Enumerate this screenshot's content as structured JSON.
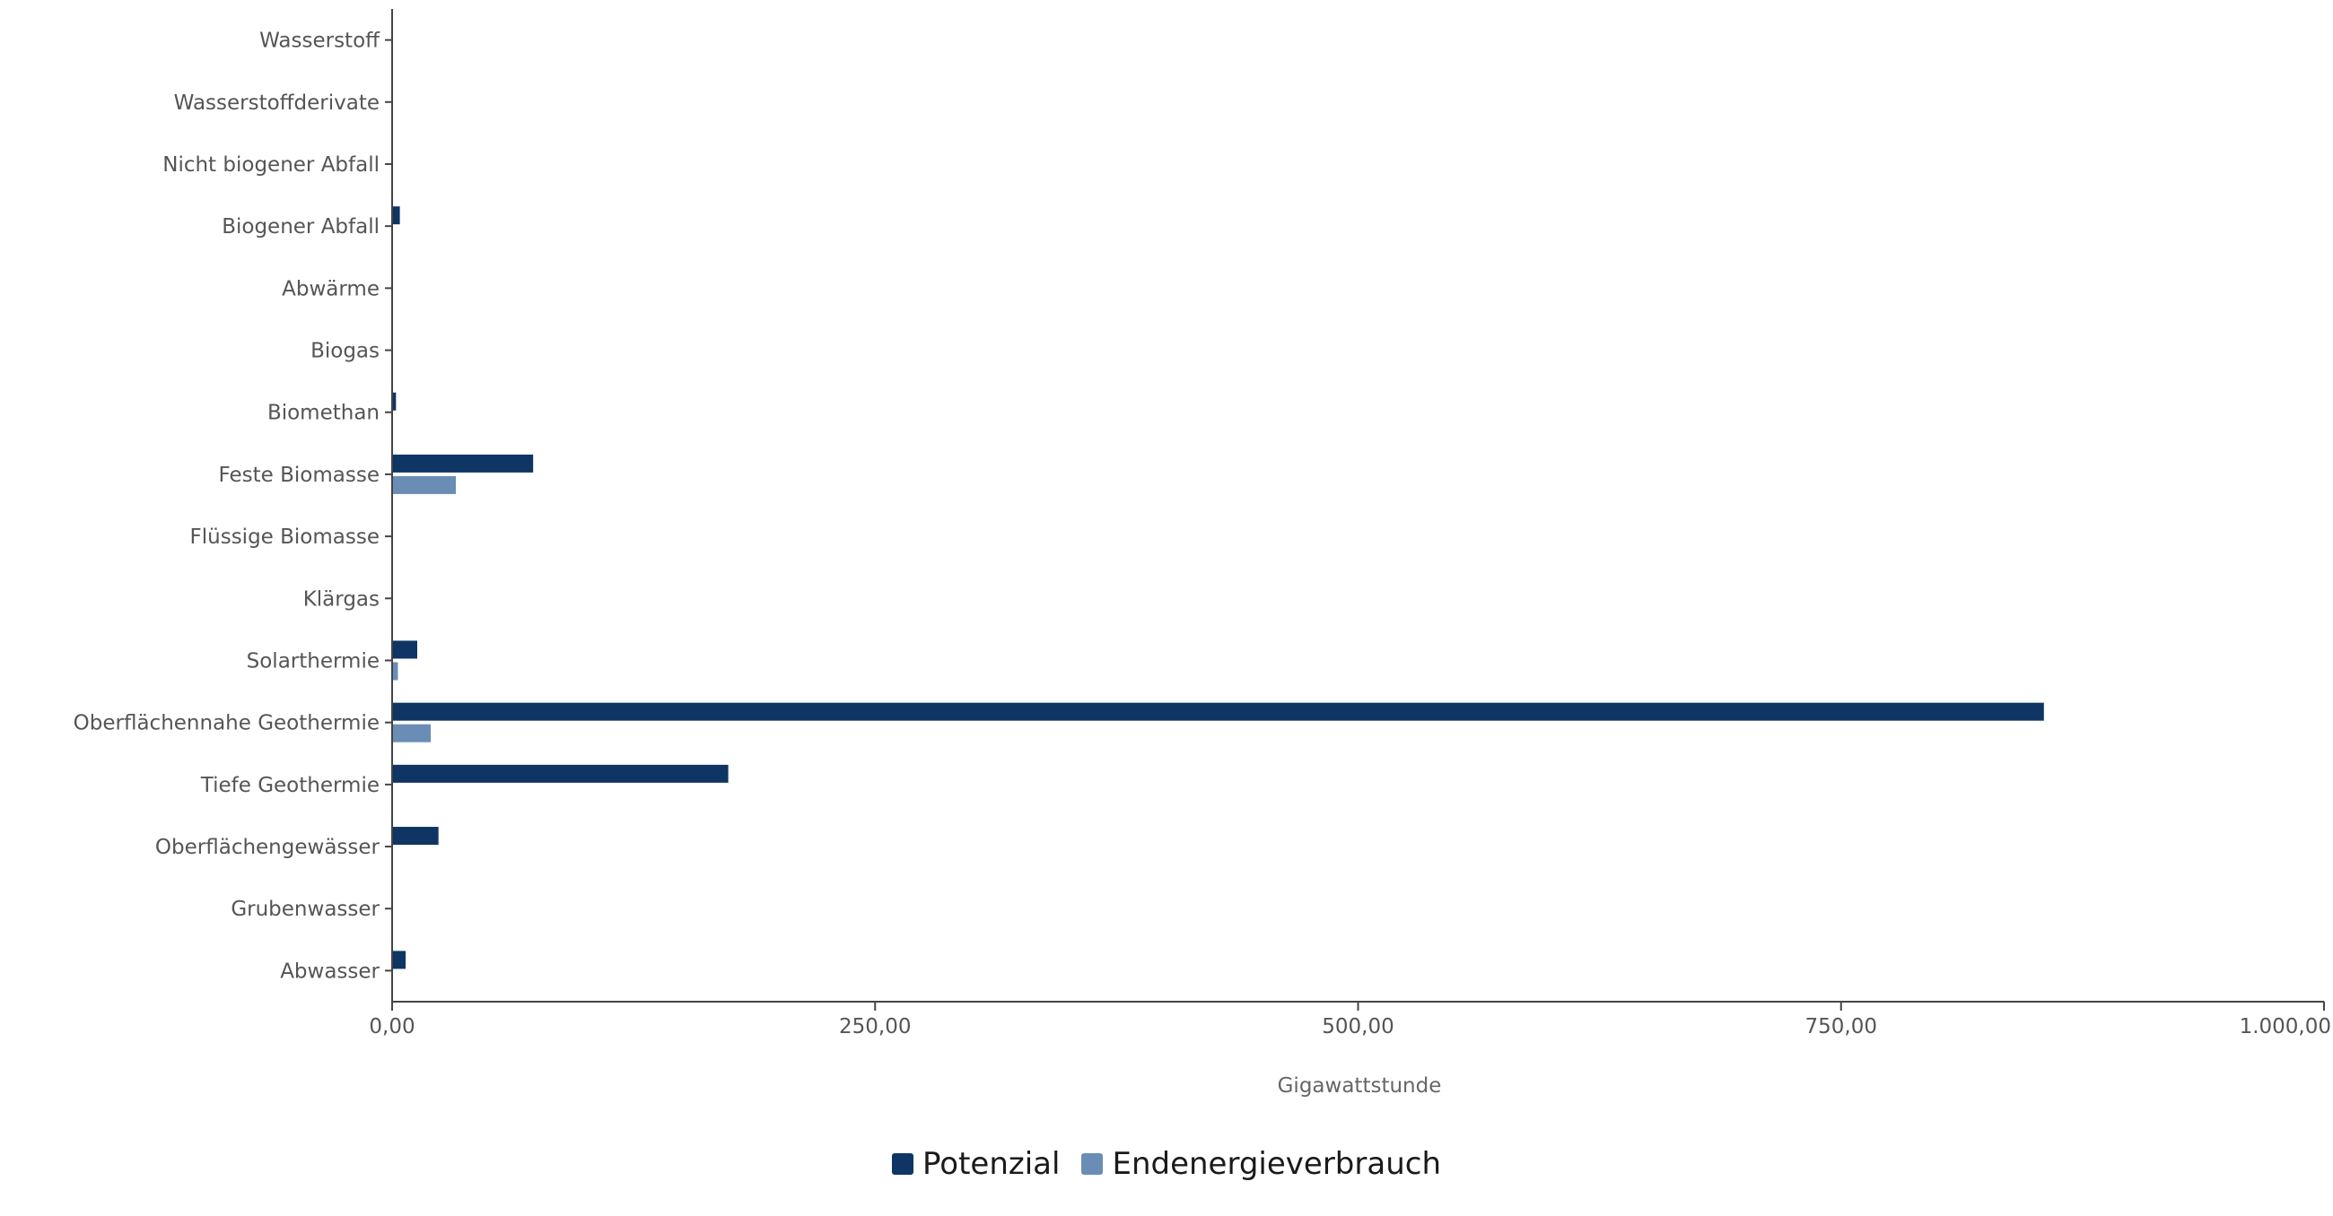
{
  "chart_data": {
    "type": "bar",
    "orientation": "horizontal",
    "categories": [
      "Wasserstoff",
      "Wasserstoffderivate",
      "Nicht biogener Abfall",
      "Biogener Abfall",
      "Abwärme",
      "Biogas",
      "Biomethan",
      "Feste Biomasse",
      "Flüssige Biomasse",
      "Klärgas",
      "Solarthermie",
      "Oberflächennahe Geothermie",
      "Tiefe Geothermie",
      "Oberflächengewässer",
      "Grubenwasser",
      "Abwasser"
    ],
    "series": [
      {
        "name": "Potenzial",
        "color": "#0f3564",
        "values": [
          0,
          0,
          0,
          4,
          0,
          0,
          2,
          73,
          0,
          0,
          13,
          855,
          174,
          24,
          0,
          7
        ]
      },
      {
        "name": "Endenergieverbrauch",
        "color": "#6a8db5",
        "values": [
          0,
          0,
          0,
          0,
          0,
          0,
          0,
          33,
          0,
          0,
          3,
          20,
          0,
          0,
          0,
          0
        ]
      }
    ],
    "xlim": [
      0,
      1000
    ],
    "xticks": [
      "0,00",
      "250,00",
      "500,00",
      "750,00",
      "1.000,00"
    ],
    "xlabel": "Gigawattstunde",
    "title": "",
    "grid": false,
    "legend_position": "bottom-center"
  }
}
